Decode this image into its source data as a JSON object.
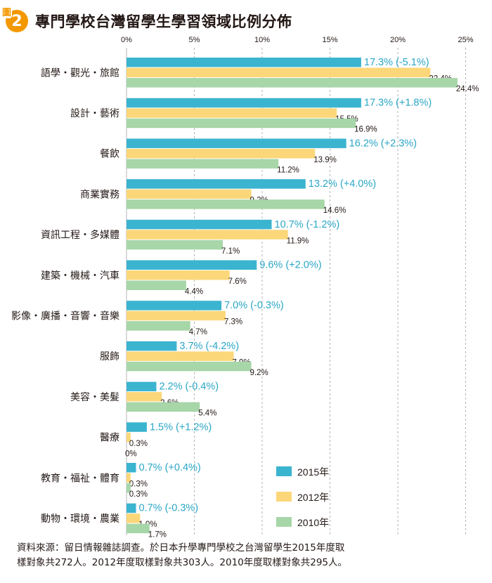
{
  "figure": {
    "badge_prefix": "圖",
    "badge_number": "2",
    "title": "專門學校台灣留學生學習領域比例分佈",
    "source_line1": "資料來源：留日情報雜誌調查。於日本升學專門學校之台灣留學生2015年度取",
    "source_line2": "樣對象共272人。2012年度取樣對象共303人。2010年度取樣對象共295人。"
  },
  "chart_data": {
    "type": "bar",
    "orientation": "horizontal",
    "title": "專門學校台灣留學生學習領域比例分佈",
    "xlabel": "",
    "ylabel": "",
    "xlim": [
      0,
      25
    ],
    "x_ticks": [
      "0%",
      "5%",
      "10%",
      "15%",
      "20%",
      "25%"
    ],
    "x_tick_values": [
      0,
      5,
      10,
      15,
      20,
      25
    ],
    "grid": "vertical dashed",
    "legend_position": "bottom-right",
    "categories": [
      "語學・觀光・旅館",
      "設計・藝術",
      "餐飲",
      "商業實務",
      "資訊工程・多媒體",
      "建築・機械・汽車",
      "影像・廣播・音響・音樂",
      "服飾",
      "美容・美髮",
      "醫療",
      "教育・福祉・體育",
      "動物・環境・農業"
    ],
    "series": [
      {
        "name": "2015年",
        "color": "#3bb4d0",
        "values": [
          17.3,
          17.3,
          16.2,
          13.2,
          10.7,
          9.6,
          7.0,
          3.7,
          2.2,
          1.5,
          0.7,
          0.7
        ],
        "labels": [
          "17.3% (-5.1%)",
          "17.3% (+1.8%)",
          "16.2% (+2.3%)",
          "13.2% (+4.0%)",
          "10.7% (-1.2%)",
          "9.6% (+2.0%)",
          "7.0% (-0.3%)",
          "3.7% (-4.2%)",
          "2.2% (-0.4%)",
          "1.5% (+1.2%)",
          "0.7% (+0.4%)",
          "0.7% (-0.3%)"
        ],
        "label_color": "#2aa6c6"
      },
      {
        "name": "2012年",
        "color": "#fcd77a",
        "values": [
          22.4,
          15.5,
          13.9,
          9.2,
          11.9,
          7.6,
          7.3,
          7.9,
          2.6,
          0.3,
          0.3,
          1.0
        ],
        "labels": [
          "22.4%",
          "15.5%",
          "13.9%",
          "9.2%",
          "11.9%",
          "7.6%",
          "7.3%",
          "7.9%",
          "2.6%",
          "0.3%",
          "0.3%",
          "1.0%"
        ],
        "label_color": "#231815"
      },
      {
        "name": "2010年",
        "color": "#a7d6a9",
        "values": [
          24.4,
          16.9,
          11.2,
          14.6,
          7.1,
          4.4,
          4.7,
          9.2,
          5.4,
          0,
          0.3,
          1.7
        ],
        "labels": [
          "24.4%",
          "16.9%",
          "11.2%",
          "14.6%",
          "7.1%",
          "4.4%",
          "4.7%",
          "9.2%",
          "5.4%",
          "0%",
          "0.3%",
          "1.7%"
        ],
        "label_color": "#231815"
      }
    ]
  }
}
